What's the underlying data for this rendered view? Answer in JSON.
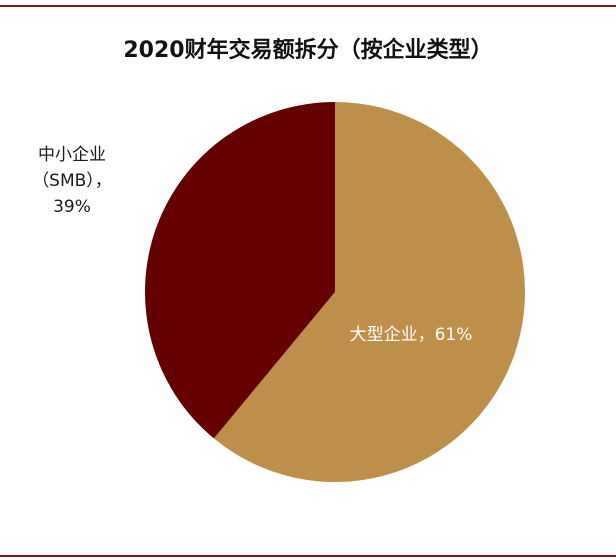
{
  "chart_data": {
    "type": "pie",
    "title": "2020财年交易额拆分（按企业类型）",
    "slices": [
      {
        "label_lines": [
          "大型企业，61%"
        ],
        "value": 61,
        "color": "#be8f4a",
        "label_color": "#ffffff",
        "label_position": "inside"
      },
      {
        "label_lines": [
          "中小企业",
          "（SMB），",
          "39%"
        ],
        "value": 39,
        "color": "#650000",
        "label_color": "#1a1a1a",
        "label_position": "outside-left"
      }
    ],
    "start_angle_deg": 0,
    "direction": "clockwise",
    "border_color": "#7a1a1a"
  }
}
